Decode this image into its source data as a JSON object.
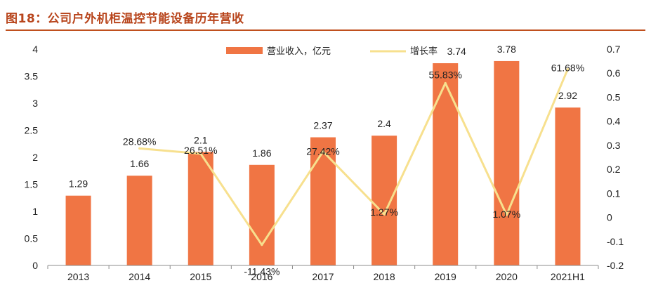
{
  "title": "图18：公司户外机柜温控节能设备历年营收",
  "chart_data": {
    "type": "bar+line",
    "categories": [
      "2013",
      "2014",
      "2015",
      "2016",
      "2017",
      "2018",
      "2019",
      "2020",
      "2021H1"
    ],
    "bar_series": {
      "name": "营业收入，亿元",
      "values": [
        1.29,
        1.66,
        2.1,
        1.86,
        2.37,
        2.4,
        3.74,
        3.78,
        2.92
      ],
      "labels": [
        "1.29",
        "1.66",
        "2.1",
        "1.86",
        "2.37",
        "2.4",
        "3.74",
        "3.78",
        "2.92"
      ],
      "color": "#f07544"
    },
    "line_series": {
      "name": "增长率",
      "categories": [
        "2014",
        "2015",
        "2016",
        "2017",
        "2018",
        "2019",
        "2020",
        "2021H1"
      ],
      "values": [
        0.2868,
        0.2651,
        -0.1143,
        0.2742,
        0.0127,
        0.5583,
        0.0107,
        0.6168
      ],
      "labels": [
        "28.68%",
        "26.51%",
        "-11.43%",
        "27.42%",
        "1.27%",
        "55.83%",
        "1.07%",
        "61.68%"
      ],
      "color": "#f7e08e"
    },
    "left_axis": {
      "min": 0,
      "max": 4,
      "ticks": [
        "0",
        "0.5",
        "1",
        "1.5",
        "2",
        "2.5",
        "3",
        "3.5",
        "4"
      ]
    },
    "right_axis": {
      "min": -0.2,
      "max": 0.7,
      "ticks": [
        "-0.2",
        "-0.1",
        "0",
        "0.1",
        "0.2",
        "0.3",
        "0.4",
        "0.5",
        "0.6",
        "0.7"
      ]
    },
    "legend_position": "top-center",
    "grid": false
  }
}
